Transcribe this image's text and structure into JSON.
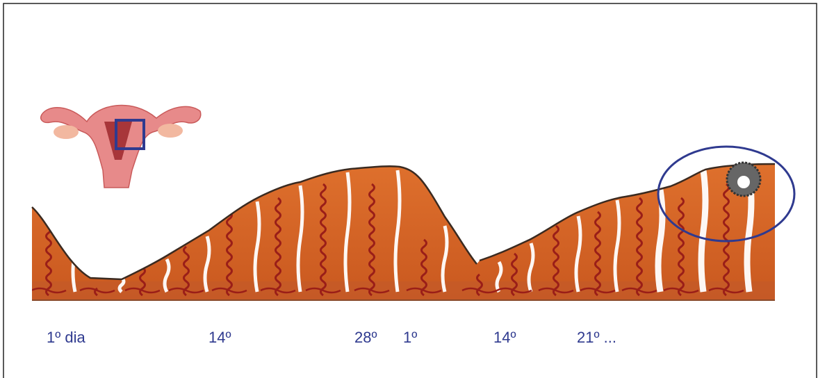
{
  "labels": [
    "1º dia",
    "14º",
    "28º",
    "1º",
    "14º",
    "21º ..."
  ]
}
